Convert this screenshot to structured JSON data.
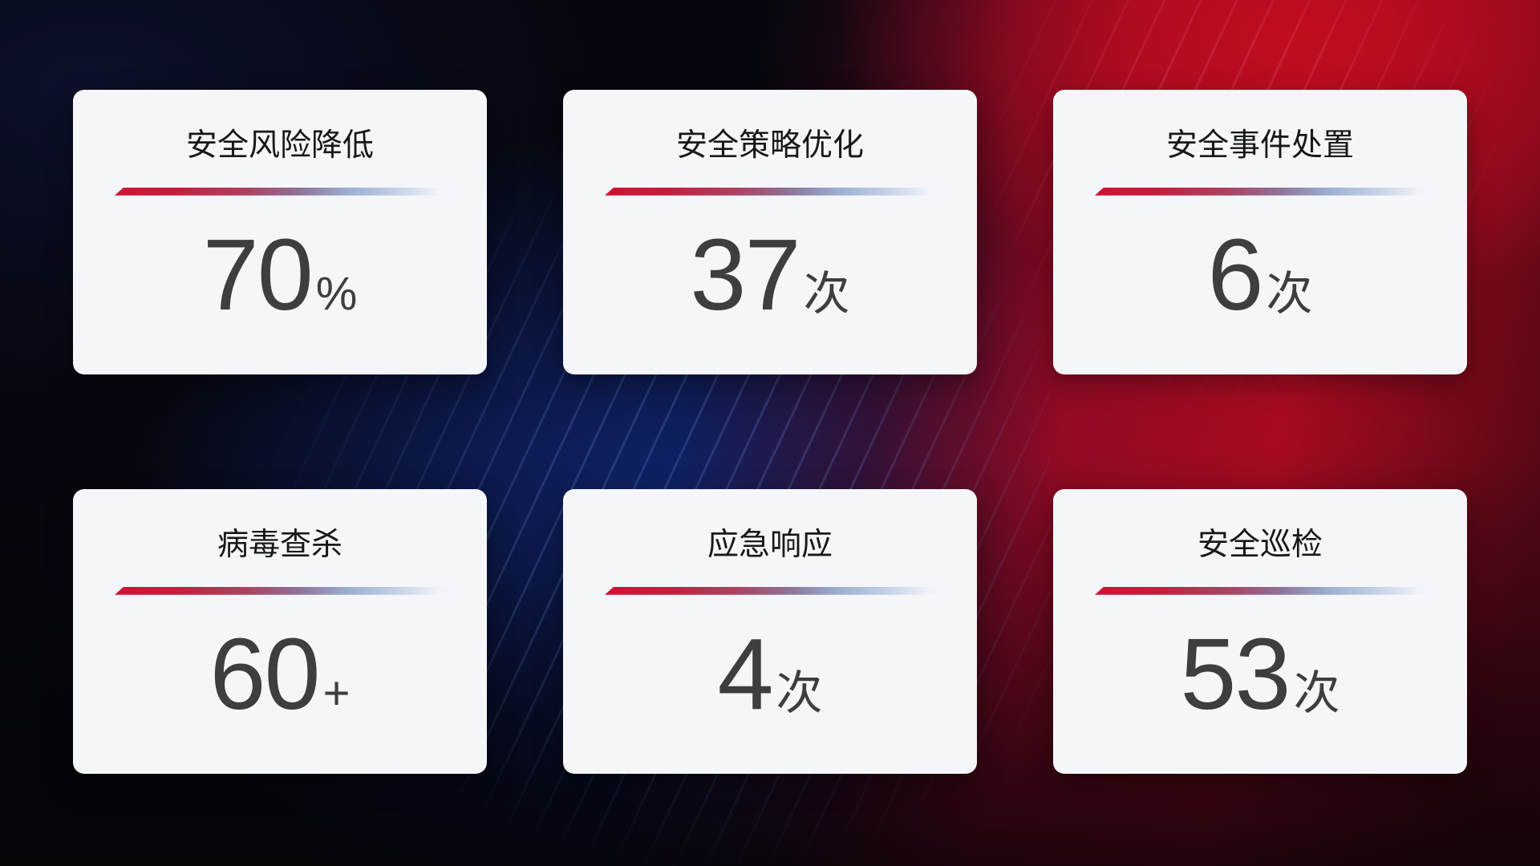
{
  "page": {
    "kind": "security-operations-stats-dashboard",
    "colors": {
      "card_background": "#f5f6f9",
      "title_text": "#17181c",
      "value_text": "#3d3e42",
      "divider_start_red": "#d30f34",
      "divider_mid_blue": "#9cb0d2",
      "bg_base_dark": "#06070e",
      "bg_blue_glow": "#11287a",
      "bg_red_glow": "#c40d1e"
    }
  },
  "cards": [
    {
      "title": "安全风险降低",
      "value": "70",
      "unit": "%"
    },
    {
      "title": "安全策略优化",
      "value": "37",
      "unit": "次"
    },
    {
      "title": "安全事件处置",
      "value": "6",
      "unit": "次"
    },
    {
      "title": "病毒查杀",
      "value": "60",
      "unit": "+"
    },
    {
      "title": "应急响应",
      "value": "4",
      "unit": "次"
    },
    {
      "title": "安全巡检",
      "value": "53",
      "unit": "次"
    }
  ]
}
